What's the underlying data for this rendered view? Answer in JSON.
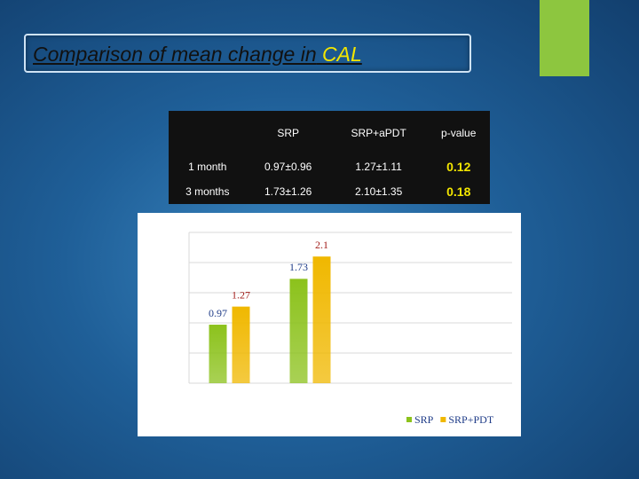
{
  "title": {
    "text": "Comparison of mean change in",
    "highlight": "CAL"
  },
  "table": {
    "columns": [
      "SRP",
      "SRP+aPDT",
      "p-value"
    ],
    "rows": [
      {
        "label": "1 month",
        "cells": [
          "0.97±0.96",
          "1.27±1.11",
          "0.12"
        ]
      },
      {
        "label": "3 months",
        "cells": [
          "1.73±1.26",
          "2.10±1.35",
          "0.18"
        ]
      }
    ]
  },
  "chart_data": {
    "type": "bar",
    "categories": [
      null,
      null,
      null,
      null
    ],
    "series": [
      {
        "name": "SRP",
        "color": "#8cc21c",
        "label_color": "#1f3c88",
        "values": [
          0.97,
          1.73,
          null,
          null
        ]
      },
      {
        "name": "SRP+PDT",
        "color": "#f0b800",
        "label_color": "#a3211d",
        "values": [
          1.27,
          2.1,
          null,
          null
        ]
      }
    ],
    "ylim": [
      0,
      2.5
    ],
    "yticks": [
      0,
      0.5,
      1,
      1.5,
      2,
      2.5
    ],
    "grid": true
  }
}
